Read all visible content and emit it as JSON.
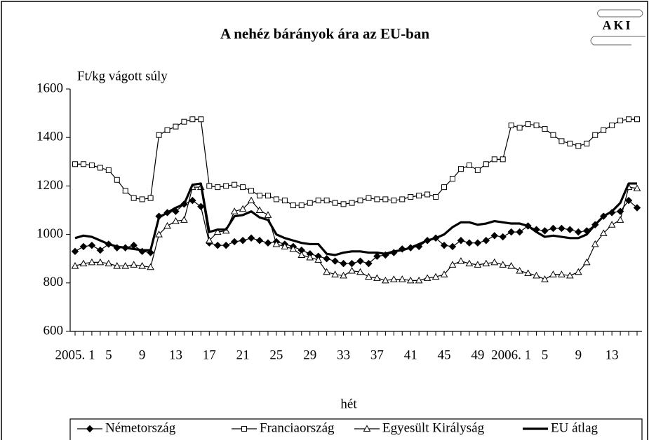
{
  "chart_data": {
    "type": "line",
    "title": "A nehéz bárányok ára az EU-ban",
    "logo": "AKI",
    "ylabel": "Ft/kg vágott súly",
    "xlabel": "hét",
    "categories": [
      "2005. 1",
      null,
      null,
      null,
      "5",
      null,
      null,
      null,
      "9",
      null,
      null,
      null,
      "13",
      null,
      null,
      null,
      "17",
      null,
      null,
      null,
      "21",
      null,
      null,
      null,
      "25",
      null,
      null,
      null,
      "29",
      null,
      null,
      null,
      "33",
      null,
      null,
      null,
      "37",
      null,
      null,
      null,
      "41",
      null,
      null,
      null,
      "45",
      null,
      null,
      null,
      "49",
      null,
      null,
      null,
      "2006. 1",
      null,
      null,
      null,
      "5",
      null,
      null,
      null,
      "9",
      null,
      null,
      null,
      "13",
      null,
      null,
      null
    ],
    "ylim": [
      600,
      1600
    ],
    "yticks": [
      600,
      800,
      1000,
      1200,
      1400,
      1600
    ],
    "series": [
      {
        "name": "Németország",
        "color": "#000000",
        "marker": "diamond",
        "line_width": 1.2,
        "values": [
          930,
          950,
          955,
          935,
          960,
          945,
          945,
          955,
          930,
          925,
          1075,
          1090,
          1095,
          1125,
          1140,
          1115,
          965,
          955,
          955,
          970,
          975,
          985,
          975,
          965,
          970,
          960,
          950,
          935,
          920,
          910,
          900,
          890,
          880,
          880,
          890,
          880,
          910,
          915,
          925,
          940,
          945,
          950,
          975,
          985,
          955,
          950,
          975,
          965,
          965,
          975,
          995,
          990,
          1010,
          1010,
          1035,
          1020,
          1015,
          1025,
          1025,
          1020,
          1010,
          1015,
          1040,
          1075,
          1090,
          1095,
          1140,
          1110
        ]
      },
      {
        "name": "Franciaország",
        "color": "#000000",
        "marker": "square",
        "line_width": 1.2,
        "values": [
          1290,
          1290,
          1285,
          1275,
          1265,
          1225,
          1180,
          1150,
          1145,
          1150,
          1410,
          1430,
          1445,
          1465,
          1475,
          1475,
          1200,
          1195,
          1200,
          1205,
          1195,
          1180,
          1160,
          1160,
          1145,
          1140,
          1120,
          1120,
          1130,
          1140,
          1140,
          1130,
          1125,
          1130,
          1140,
          1150,
          1145,
          1145,
          1140,
          1145,
          1155,
          1160,
          1165,
          1155,
          1195,
          1230,
          1270,
          1285,
          1265,
          1290,
          1310,
          1310,
          1450,
          1440,
          1455,
          1450,
          1435,
          1410,
          1385,
          1375,
          1365,
          1375,
          1410,
          1430,
          1450,
          1470,
          1475,
          1475
        ]
      },
      {
        "name": "Egyesült Királyság",
        "color": "#000000",
        "marker": "triangle",
        "line_width": 1.2,
        "values": [
          870,
          880,
          885,
          885,
          880,
          870,
          870,
          875,
          870,
          865,
          1000,
          1035,
          1055,
          1060,
          1195,
          1195,
          975,
          1010,
          1015,
          1095,
          1105,
          1140,
          1100,
          1080,
          960,
          950,
          940,
          915,
          905,
          895,
          845,
          835,
          830,
          850,
          845,
          825,
          820,
          810,
          815,
          815,
          810,
          810,
          820,
          825,
          835,
          875,
          890,
          880,
          875,
          880,
          885,
          875,
          870,
          850,
          840,
          830,
          815,
          835,
          835,
          830,
          845,
          885,
          960,
          1005,
          1040,
          1060,
          1195,
          1190
        ]
      },
      {
        "name": "EU átlag",
        "color": "#000000",
        "marker": "none",
        "line_width": 3.2,
        "values": [
          985,
          995,
          990,
          975,
          960,
          950,
          945,
          940,
          935,
          935,
          1070,
          1090,
          1110,
          1125,
          1205,
          1210,
          1010,
          1020,
          1020,
          1075,
          1080,
          1095,
          1070,
          1060,
          1000,
          985,
          975,
          965,
          960,
          960,
          920,
          915,
          925,
          930,
          930,
          925,
          925,
          920,
          930,
          935,
          945,
          960,
          975,
          985,
          1000,
          1030,
          1050,
          1050,
          1040,
          1045,
          1055,
          1050,
          1045,
          1045,
          1035,
          1010,
          990,
          995,
          990,
          985,
          985,
          1000,
          1040,
          1075,
          1095,
          1130,
          1210,
          1210
        ]
      }
    ]
  }
}
